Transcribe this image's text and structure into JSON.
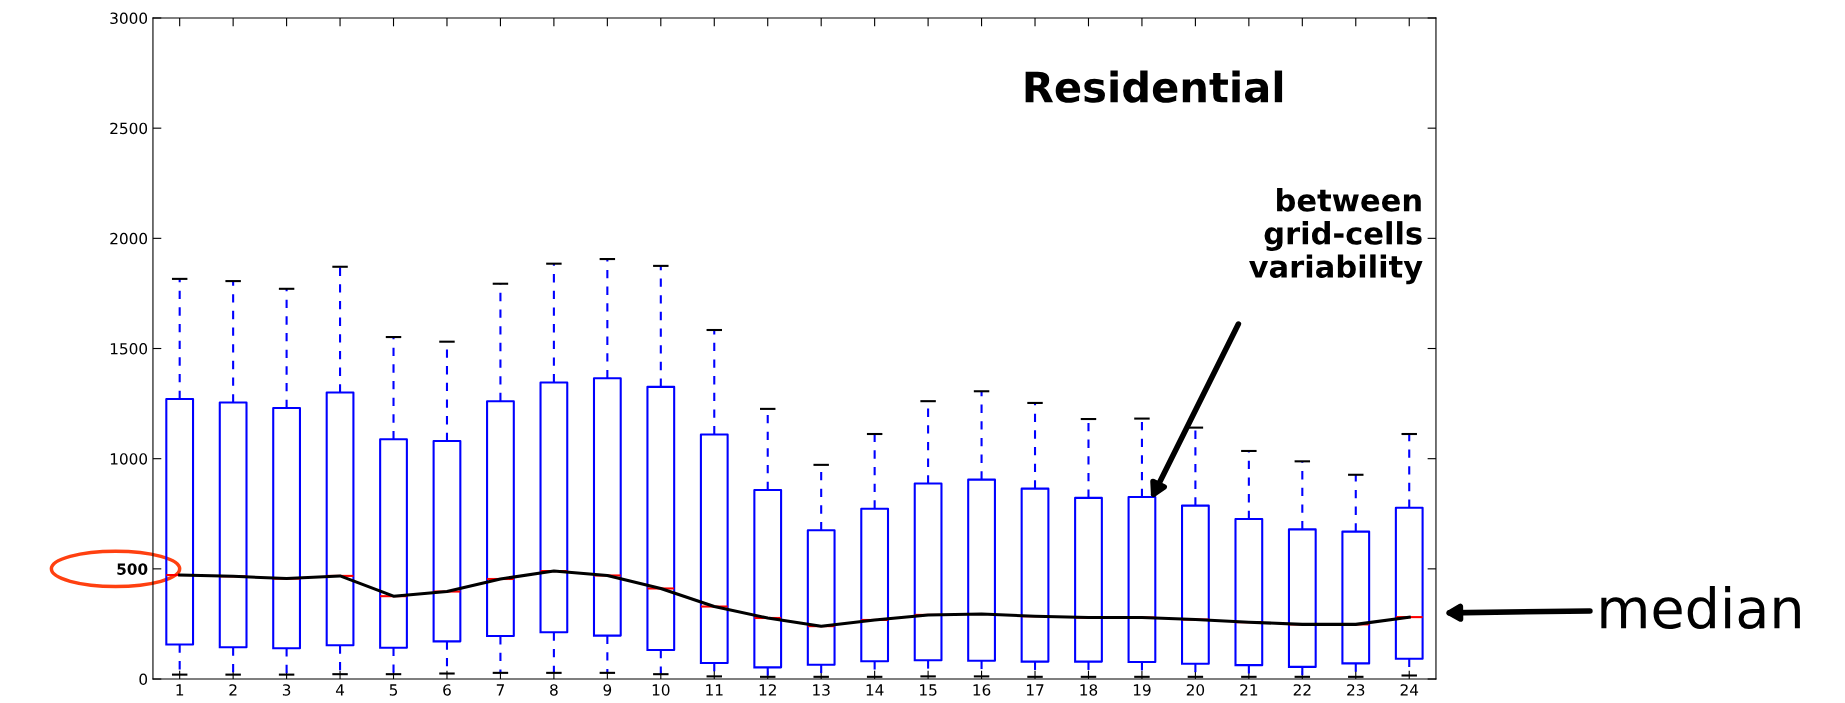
{
  "chart_data": {
    "type": "box",
    "categories": [
      "1",
      "2",
      "3",
      "4",
      "5",
      "6",
      "7",
      "8",
      "9",
      "10",
      "11",
      "12",
      "13",
      "14",
      "15",
      "16",
      "17",
      "18",
      "19",
      "20",
      "21",
      "22",
      "23",
      "24"
    ],
    "series": [
      {
        "color": "#0000ff",
        "boxes": [
          {
            "low": 20,
            "q1": 157,
            "median": 472,
            "q3": 1271,
            "high": 1816
          },
          {
            "low": 20,
            "q1": 144,
            "median": 466,
            "q3": 1255,
            "high": 1806
          },
          {
            "low": 20,
            "q1": 140,
            "median": 456,
            "q3": 1230,
            "high": 1771
          },
          {
            "low": 22,
            "q1": 153,
            "median": 468,
            "q3": 1300,
            "high": 1871
          },
          {
            "low": 22,
            "q1": 142,
            "median": 376,
            "q3": 1088,
            "high": 1552
          },
          {
            "low": 25,
            "q1": 171,
            "median": 397,
            "q3": 1080,
            "high": 1531
          },
          {
            "low": 28,
            "q1": 195,
            "median": 454,
            "q3": 1261,
            "high": 1794
          },
          {
            "low": 28,
            "q1": 212,
            "median": 490,
            "q3": 1346,
            "high": 1885
          },
          {
            "low": 28,
            "q1": 197,
            "median": 470,
            "q3": 1365,
            "high": 1906
          },
          {
            "low": 22,
            "q1": 132,
            "median": 411,
            "q3": 1326,
            "high": 1875
          },
          {
            "low": 12,
            "q1": 73,
            "median": 329,
            "q3": 1110,
            "high": 1584
          },
          {
            "low": 10,
            "q1": 53,
            "median": 277,
            "q3": 858,
            "high": 1226
          },
          {
            "low": 10,
            "q1": 65,
            "median": 240,
            "q3": 675,
            "high": 972
          },
          {
            "low": 10,
            "q1": 81,
            "median": 268,
            "q3": 773,
            "high": 1112
          },
          {
            "low": 12,
            "q1": 85,
            "median": 291,
            "q3": 887,
            "high": 1261
          },
          {
            "low": 12,
            "q1": 83,
            "median": 295,
            "q3": 905,
            "high": 1306
          },
          {
            "low": 10,
            "q1": 79,
            "median": 285,
            "q3": 864,
            "high": 1253
          },
          {
            "low": 10,
            "q1": 79,
            "median": 279,
            "q3": 822,
            "high": 1180
          },
          {
            "low": 10,
            "q1": 77,
            "median": 279,
            "q3": 826,
            "high": 1182
          },
          {
            "low": 10,
            "q1": 69,
            "median": 270,
            "q3": 787,
            "high": 1141
          },
          {
            "low": 10,
            "q1": 63,
            "median": 258,
            "q3": 726,
            "high": 1035
          },
          {
            "low": 10,
            "q1": 55,
            "median": 248,
            "q3": 679,
            "high": 988
          },
          {
            "low": 10,
            "q1": 71,
            "median": 248,
            "q3": 669,
            "high": 927
          },
          {
            "low": 16,
            "q1": 92,
            "median": 281,
            "q3": 777,
            "high": 1112
          }
        ]
      },
      {
        "type": "line",
        "color": "#000000",
        "values": [
          472,
          466,
          456,
          468,
          376,
          397,
          454,
          490,
          470,
          411,
          329,
          277,
          240,
          268,
          291,
          295,
          285,
          279,
          279,
          270,
          258,
          248,
          248,
          281
        ]
      }
    ],
    "ylim": [
      0,
      3000
    ],
    "yticks": [
      0,
      {
        "value": 500,
        "label": "500"
      },
      1000,
      1500,
      2000,
      2500,
      3000
    ],
    "grid": false,
    "legend": false,
    "annotations": [
      "Residential",
      "between\ngrid-cells\nvariability",
      "median"
    ]
  }
}
